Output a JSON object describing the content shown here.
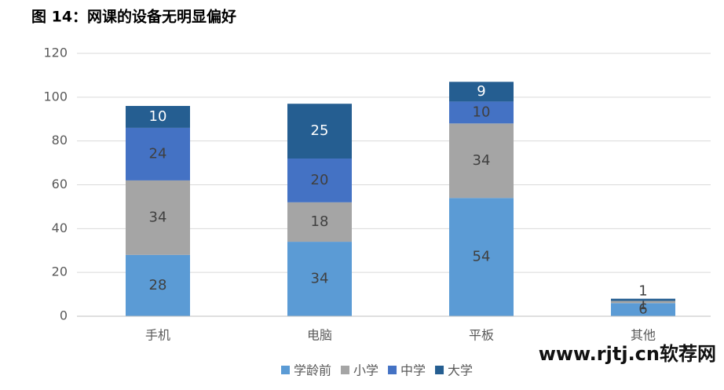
{
  "chart_data": {
    "type": "stacked_bar",
    "title": "图 14：网课的设备无明显偏好",
    "categories": [
      "手机",
      "电脑",
      "平板",
      "其他"
    ],
    "series": [
      {
        "name": "学龄前",
        "color": "#5b9bd5",
        "values": [
          28,
          34,
          54,
          6
        ]
      },
      {
        "name": "小学",
        "color": "#a5a5a5",
        "values": [
          34,
          18,
          34,
          1
        ]
      },
      {
        "name": "中学",
        "color": "#4472c4",
        "values": [
          24,
          20,
          10,
          0
        ]
      },
      {
        "name": "大学",
        "color": "#255e91",
        "values": [
          10,
          25,
          9,
          1
        ]
      }
    ],
    "ylim": [
      0,
      120
    ],
    "yticks": [
      0,
      20,
      40,
      60,
      80,
      100,
      120
    ],
    "grid": true,
    "legend": "bottom",
    "watermark": "www.rjtj.cn软荐网"
  }
}
